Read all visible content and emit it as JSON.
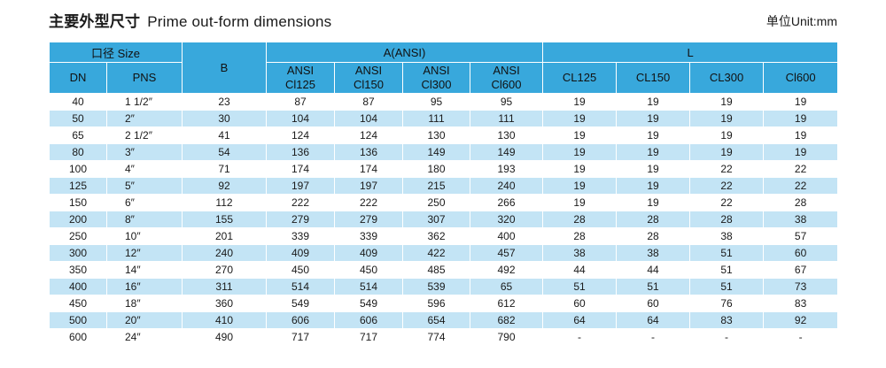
{
  "page": {
    "title_cn": "主要外型尺寸",
    "title_en": "Prime out-form dimensions",
    "unit_label": "单位Unit:mm"
  },
  "colors": {
    "header_blue": "#38a8dc",
    "alt_row_blue": "#c3e4f5"
  },
  "table": {
    "header": {
      "size_group": "口径 Size",
      "dn": "DN",
      "pns": "PNS",
      "b": "B",
      "a_group": "A(ANSI)",
      "l_group": "L",
      "ansi_cols": [
        {
          "line1": "ANSI",
          "line2": "Cl125"
        },
        {
          "line1": "ANSI",
          "line2": "Cl150"
        },
        {
          "line1": "ANSI",
          "line2": "Cl300"
        },
        {
          "line1": "ANSI",
          "line2": "Cl600"
        }
      ],
      "l_cols": [
        "CL125",
        "CL150",
        "CL300",
        "Cl600"
      ]
    },
    "rows": [
      [
        "40",
        "1 1/2″",
        "23",
        "87",
        "87",
        "95",
        "95",
        "19",
        "19",
        "19",
        "19"
      ],
      [
        "50",
        "2″",
        "30",
        "104",
        "104",
        "111",
        "111",
        "19",
        "19",
        "19",
        "19"
      ],
      [
        "65",
        "2 1/2″",
        "41",
        "124",
        "124",
        "130",
        "130",
        "19",
        "19",
        "19",
        "19"
      ],
      [
        "80",
        "3″",
        "54",
        "136",
        "136",
        "149",
        "149",
        "19",
        "19",
        "19",
        "19"
      ],
      [
        "100",
        "4″",
        "71",
        "174",
        "174",
        "180",
        "193",
        "19",
        "19",
        "22",
        "22"
      ],
      [
        "125",
        "5″",
        "92",
        "197",
        "197",
        "215",
        "240",
        "19",
        "19",
        "22",
        "22"
      ],
      [
        "150",
        "6″",
        "112",
        "222",
        "222",
        "250",
        "266",
        "19",
        "19",
        "22",
        "28"
      ],
      [
        "200",
        "8″",
        "155",
        "279",
        "279",
        "307",
        "320",
        "28",
        "28",
        "28",
        "38"
      ],
      [
        "250",
        "10″",
        "201",
        "339",
        "339",
        "362",
        "400",
        "28",
        "28",
        "38",
        "57"
      ],
      [
        "300",
        "12″",
        "240",
        "409",
        "409",
        "422",
        "457",
        "38",
        "38",
        "51",
        "60"
      ],
      [
        "350",
        "14″",
        "270",
        "450",
        "450",
        "485",
        "492",
        "44",
        "44",
        "51",
        "67"
      ],
      [
        "400",
        "16″",
        "311",
        "514",
        "514",
        "539",
        "65",
        "51",
        "51",
        "51",
        "73"
      ],
      [
        "450",
        "18″",
        "360",
        "549",
        "549",
        "596",
        "612",
        "60",
        "60",
        "76",
        "83"
      ],
      [
        "500",
        "20″",
        "410",
        "606",
        "606",
        "654",
        "682",
        "64",
        "64",
        "83",
        "92"
      ],
      [
        "600",
        "24″",
        "490",
        "717",
        "717",
        "774",
        "790",
        "-",
        "-",
        "-",
        "-"
      ]
    ]
  }
}
